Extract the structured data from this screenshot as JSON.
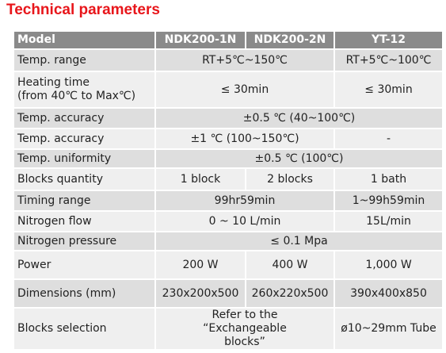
{
  "title": "Technical parameters",
  "table": {
    "header": [
      "Model",
      "NDK200-1N",
      "NDK200-2N",
      "YT-12"
    ],
    "rows": [
      [
        "Temp. range",
        "RT+5℃~150℃",
        "RT+5℃~100℃"
      ],
      [
        "Heating time\n(from 40℃ to Max℃)",
        "≤ 30min",
        "≤ 30min"
      ],
      [
        "Temp. accuracy",
        "±0.5 ℃  (40~100℃)"
      ],
      [
        "Temp. accuracy",
        "±1 ℃  (100~150℃)",
        "-"
      ],
      [
        "Temp. uniformity",
        "±0.5 ℃ (100℃)"
      ],
      [
        "Blocks quantity",
        "1 block",
        "2 blocks",
        "1 bath"
      ],
      [
        "Timing range",
        "99hr59min",
        "1~99h59min"
      ],
      [
        "Nitrogen flow",
        "0 ~ 10 L/min",
        "15L/min"
      ],
      [
        "Nitrogen pressure",
        "≤ 0.1 Mpa"
      ],
      [
        "Power",
        "200 W",
        "400 W",
        "1,000 W"
      ],
      [
        "Dimensions (mm)",
        "230x200x500",
        "260x220x500",
        "390x400x850"
      ],
      [
        "Blocks selection",
        "Refer to the “Exchangeable blocks”",
        "ø10~29mm Tube"
      ]
    ]
  }
}
